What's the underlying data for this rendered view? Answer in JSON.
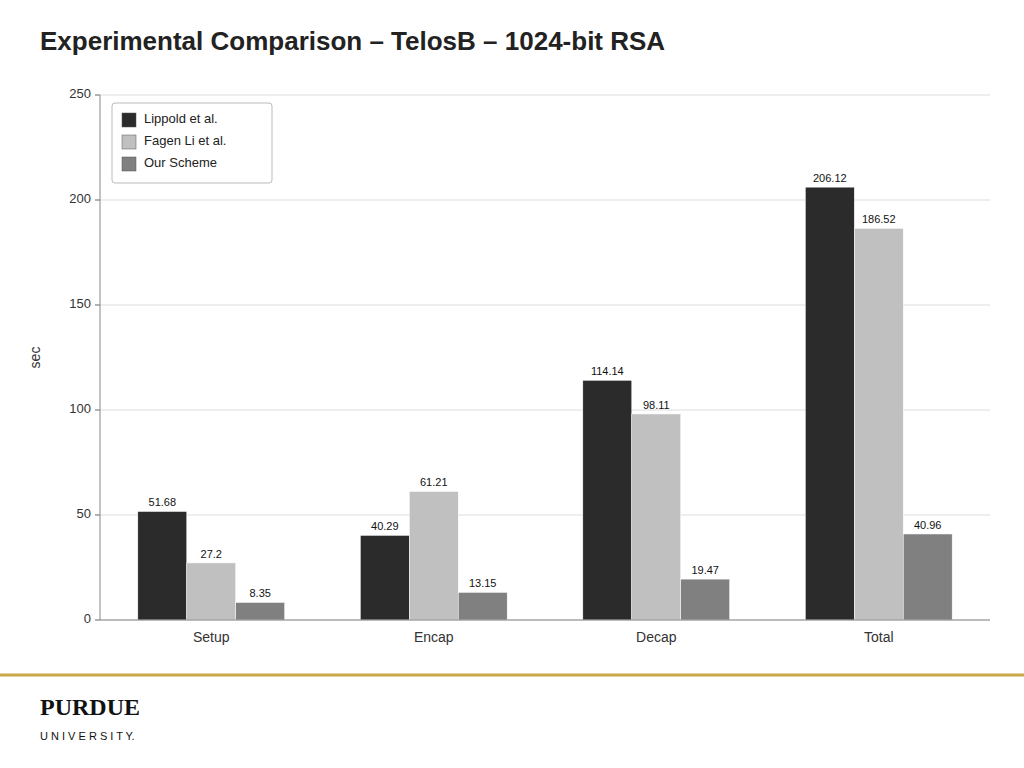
{
  "chart_data": {
    "type": "bar",
    "title": "Experimental Comparison – TelosB – 1024-bit RSA",
    "categories": [
      "Setup ",
      "Encap ",
      "Decap ",
      "Total "
    ],
    "series": [
      {
        "name": "Lippold et al. ",
        "color": "#2b2b2b",
        "values": [
          51.68,
          40.29,
          114.14,
          206.12
        ]
      },
      {
        "name": "Fagen Li et al. ",
        "color": "#c0c0c0",
        "values": [
          27.2,
          61.21,
          98.11,
          186.52
        ]
      },
      {
        "name": "Our Scheme ",
        "color": "#808080",
        "values": [
          8.35,
          13.15,
          19.47,
          40.96
        ]
      }
    ],
    "ylabel": "sec ",
    "ylim": [
      0,
      250
    ],
    "yticks": [
      0,
      50,
      100,
      150,
      200,
      250
    ],
    "grid": true,
    "legend": "upper left",
    "data_labels": true,
    "annotations": [
      "PURDUE",
      "U N I V E R S I T Y."
    ]
  }
}
